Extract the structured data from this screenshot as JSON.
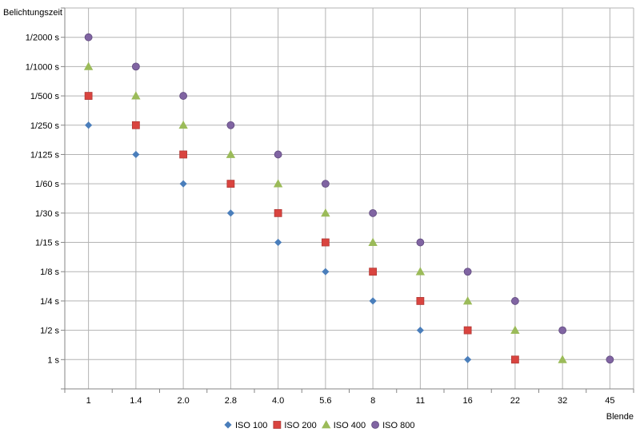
{
  "chart_data": {
    "type": "scatter",
    "ylabel": "Belichtungszeit",
    "xlabel": "Blende",
    "x_categories": [
      "1",
      "1.4",
      "2.0",
      "2.8",
      "4.0",
      "5.6",
      "8",
      "11",
      "16",
      "22",
      "32",
      "45"
    ],
    "y_categories": [
      "1 s",
      "1/2 s",
      "1/4 s",
      "1/8 s",
      "1/15 s",
      "1/30 s",
      "1/60 s",
      "1/125 s",
      "1/250 s",
      "1/500 s",
      "1/1000 s",
      "1/2000 s"
    ],
    "grid": true,
    "legend_position": "bottom",
    "series": [
      {
        "name": "ISO 100",
        "marker": "diamond",
        "color": "#4a7ebb",
        "x": [
          "1",
          "1.4",
          "2.0",
          "2.8",
          "4.0",
          "5.6",
          "8",
          "11",
          "16"
        ],
        "y": [
          "1/250 s",
          "1/125 s",
          "1/60 s",
          "1/30 s",
          "1/15 s",
          "1/8 s",
          "1/4 s",
          "1/2 s",
          "1 s"
        ]
      },
      {
        "name": "ISO 200",
        "marker": "square",
        "color": "#d9443f",
        "x": [
          "1",
          "1.4",
          "2.0",
          "2.8",
          "4.0",
          "5.6",
          "8",
          "11",
          "16",
          "22"
        ],
        "y": [
          "1/500 s",
          "1/250 s",
          "1/125 s",
          "1/60 s",
          "1/30 s",
          "1/15 s",
          "1/8 s",
          "1/4 s",
          "1/2 s",
          "1 s"
        ]
      },
      {
        "name": "ISO 400",
        "marker": "triangle",
        "color": "#9bbb59",
        "x": [
          "1",
          "1.4",
          "2.0",
          "2.8",
          "4.0",
          "5.6",
          "8",
          "11",
          "16",
          "22",
          "32"
        ],
        "y": [
          "1/1000 s",
          "1/500 s",
          "1/250 s",
          "1/125 s",
          "1/60 s",
          "1/30 s",
          "1/15 s",
          "1/8 s",
          "1/4 s",
          "1/2 s",
          "1 s"
        ]
      },
      {
        "name": "ISO 800",
        "marker": "circle",
        "color": "#8064a2",
        "x": [
          "1",
          "1.4",
          "2.0",
          "2.8",
          "4.0",
          "5.6",
          "8",
          "11",
          "16",
          "22",
          "32",
          "45"
        ],
        "y": [
          "1/2000 s",
          "1/1000 s",
          "1/500 s",
          "1/250 s",
          "1/125 s",
          "1/60 s",
          "1/30 s",
          "1/15 s",
          "1/8 s",
          "1/4 s",
          "1/2 s",
          "1 s"
        ]
      }
    ]
  }
}
